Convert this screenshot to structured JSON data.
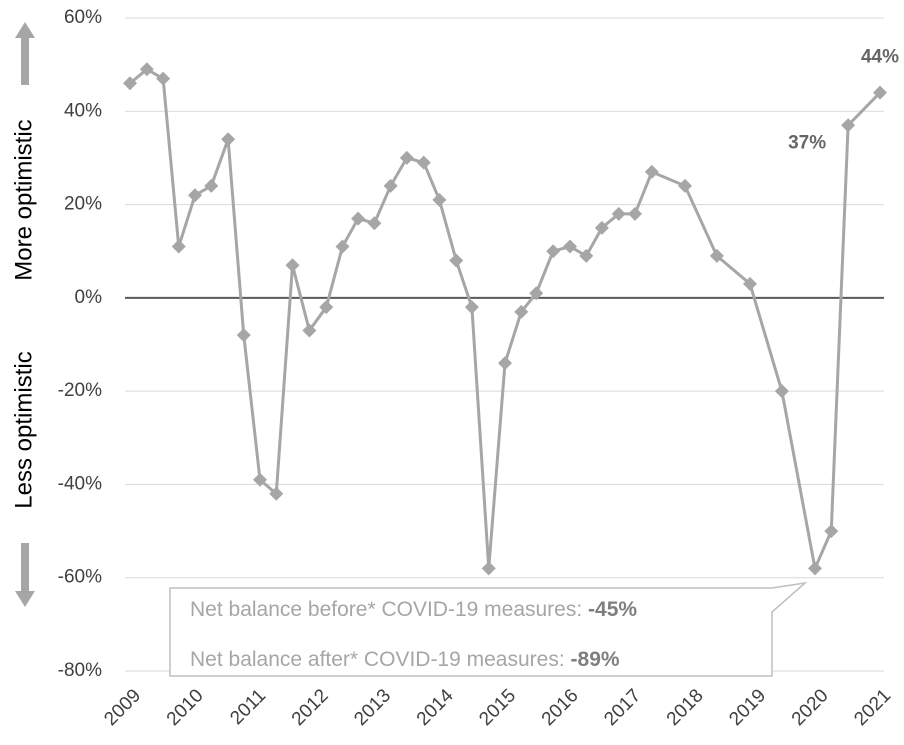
{
  "chart_data": {
    "type": "line",
    "x": [
      2009.0,
      2009.27,
      2009.53,
      2009.78,
      2010.04,
      2010.3,
      2010.57,
      2010.82,
      2011.08,
      2011.34,
      2011.6,
      2011.87,
      2012.14,
      2012.4,
      2012.65,
      2012.91,
      2013.17,
      2013.43,
      2013.7,
      2013.95,
      2014.22,
      2014.47,
      2014.74,
      2015.0,
      2015.26,
      2015.5,
      2015.77,
      2016.04,
      2016.3,
      2016.55,
      2016.82,
      2017.08,
      2017.35,
      2017.88,
      2018.39,
      2018.92,
      2019.43,
      2019.96,
      2020.22,
      2020.49,
      2021.0
    ],
    "series": [
      {
        "color": "#a6a6a6",
        "values": [
          46,
          49,
          47,
          11,
          22,
          24,
          34,
          -8,
          -39,
          -42,
          7,
          -7,
          -2,
          11,
          17,
          16,
          24,
          30,
          29,
          21,
          8,
          -2,
          -58,
          -14,
          -3,
          1,
          10,
          11,
          9,
          15,
          18,
          18,
          27,
          24,
          9,
          3,
          -20,
          -58,
          -50,
          37,
          44
        ],
        "value_labels": [
          null,
          null,
          null,
          null,
          null,
          null,
          null,
          null,
          null,
          null,
          null,
          null,
          null,
          null,
          null,
          null,
          null,
          null,
          null,
          null,
          null,
          null,
          null,
          null,
          null,
          null,
          null,
          null,
          null,
          null,
          null,
          null,
          null,
          null,
          null,
          null,
          null,
          null,
          null,
          "37%",
          "44%"
        ]
      }
    ],
    "xlim": [
      2009,
      2021
    ],
    "xticks": [
      2009,
      2010,
      2011,
      2012,
      2013,
      2014,
      2015,
      2016,
      2017,
      2018,
      2019,
      2020,
      2021
    ],
    "ylim": [
      -80,
      60
    ],
    "yticks": [
      {
        "value": -80,
        "label": "-80%"
      },
      {
        "value": -60,
        "label": "-60%"
      },
      {
        "value": -40,
        "label": "-40%"
      },
      {
        "value": -20,
        "label": "-20%"
      },
      {
        "value": 0,
        "label": "0%"
      },
      {
        "value": 20,
        "label": "20%"
      },
      {
        "value": 40,
        "label": "40%"
      },
      {
        "value": 60,
        "label": "60%"
      }
    ],
    "grid": true,
    "y_label_top": "More optimistic",
    "y_label_bottom": "Less optimistic",
    "callout": [
      {
        "text": "Net balance before* COVID-19 measures: ",
        "value": "-45%"
      },
      {
        "text": "Net balance after* COVID-19 measures: ",
        "value": "-89%"
      }
    ]
  }
}
